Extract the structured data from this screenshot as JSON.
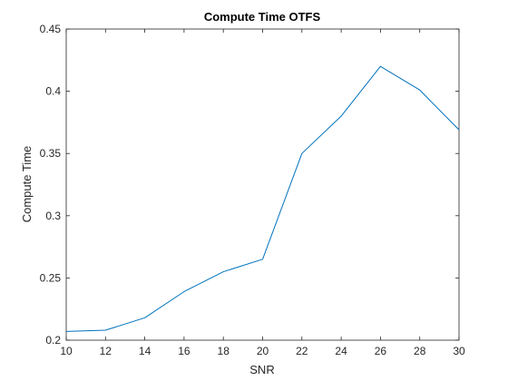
{
  "chart_data": {
    "type": "line",
    "title": "Compute Time OTFS",
    "xlabel": "SNR",
    "ylabel": "Compute Time",
    "xlim": [
      10,
      30
    ],
    "ylim": [
      0.2,
      0.45
    ],
    "xticks": [
      10,
      12,
      14,
      16,
      18,
      20,
      22,
      24,
      26,
      28,
      30
    ],
    "yticks": [
      0.2,
      0.25,
      0.3,
      0.35,
      0.4,
      0.45
    ],
    "ytick_labels": [
      "0.2",
      "0.25",
      "0.3",
      "0.35",
      "0.4",
      "0.45"
    ],
    "grid": false,
    "series": [
      {
        "color": "#0072BD",
        "x": [
          10,
          12,
          14,
          16,
          18,
          20,
          22,
          24,
          26,
          28,
          30
        ],
        "y": [
          0.207,
          0.208,
          0.218,
          0.239,
          0.255,
          0.265,
          0.35,
          0.38,
          0.42,
          0.401,
          0.369
        ]
      }
    ]
  }
}
